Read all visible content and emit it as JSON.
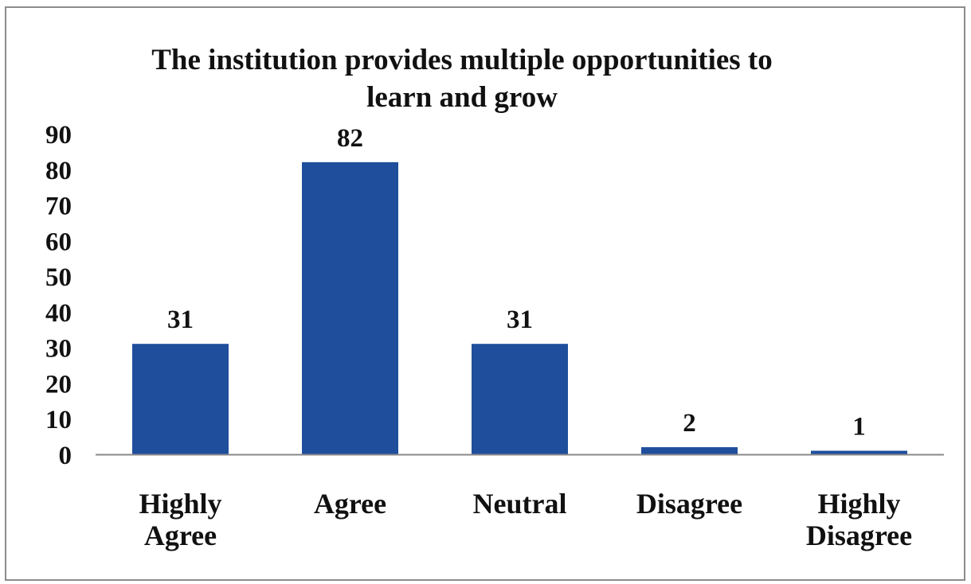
{
  "chart_data": {
    "type": "bar",
    "title_lines": [
      "The institution  provides multiple  opportunities  to",
      "learn and grow"
    ],
    "categories": [
      [
        "Highly",
        "Agree"
      ],
      [
        "Agree"
      ],
      [
        "Neutral"
      ],
      [
        "Disagree"
      ],
      [
        "Highly",
        "Disagree"
      ]
    ],
    "values": [
      31,
      82,
      31,
      2,
      1
    ],
    "data_labels": [
      "31",
      "82",
      "31",
      "2",
      "1"
    ],
    "ylim": [
      0,
      90
    ],
    "yticks": [
      "0",
      "10",
      "20",
      "30",
      "40",
      "50",
      "60",
      "70",
      "80",
      "90"
    ],
    "grid": false,
    "legend": "none",
    "bar_color": "#1f4e9c"
  }
}
